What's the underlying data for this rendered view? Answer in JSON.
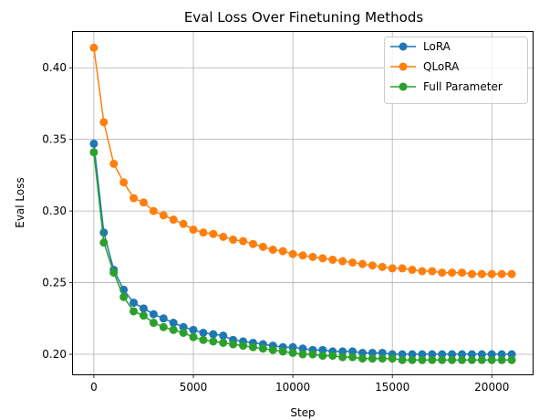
{
  "chart_data": {
    "type": "line",
    "title": "Eval Loss Over Finetuning Methods",
    "xlabel": "Step",
    "ylabel": "Eval Loss",
    "xlim": [
      -1050,
      22050
    ],
    "ylim": [
      0.186,
      0.425
    ],
    "x_ticks": [
      0,
      5000,
      10000,
      15000,
      20000
    ],
    "x_tick_labels": [
      "0",
      "5000",
      "10000",
      "15000",
      "20000"
    ],
    "y_ticks": [
      0.2,
      0.25,
      0.3,
      0.35,
      0.4
    ],
    "y_tick_labels": [
      "0.20",
      "0.25",
      "0.30",
      "0.35",
      "0.40"
    ],
    "grid": true,
    "legend_position": "top-right",
    "x": [
      0,
      500,
      1000,
      1500,
      2000,
      2500,
      3000,
      3500,
      4000,
      4500,
      5000,
      5500,
      6000,
      6500,
      7000,
      7500,
      8000,
      8500,
      9000,
      9500,
      10000,
      10500,
      11000,
      11500,
      12000,
      12500,
      13000,
      13500,
      14000,
      14500,
      15000,
      15500,
      16000,
      16500,
      17000,
      17500,
      18000,
      18500,
      19000,
      19500,
      20000,
      20500,
      21000
    ],
    "series": [
      {
        "name": "LoRA",
        "color": "#1f77b4",
        "values": [
          0.347,
          0.285,
          0.259,
          0.245,
          0.236,
          0.232,
          0.228,
          0.225,
          0.222,
          0.219,
          0.217,
          0.215,
          0.214,
          0.213,
          0.21,
          0.209,
          0.208,
          0.207,
          0.206,
          0.205,
          0.205,
          0.204,
          0.203,
          0.203,
          0.202,
          0.202,
          0.202,
          0.201,
          0.201,
          0.201,
          0.2,
          0.2,
          0.2,
          0.2,
          0.2,
          0.2,
          0.2,
          0.2,
          0.2,
          0.2,
          0.2,
          0.2,
          0.2
        ]
      },
      {
        "name": "QLoRA",
        "color": "#ff7f0e",
        "values": [
          0.414,
          0.362,
          0.333,
          0.32,
          0.309,
          0.306,
          0.3,
          0.297,
          0.294,
          0.291,
          0.287,
          0.285,
          0.284,
          0.282,
          0.28,
          0.279,
          0.277,
          0.275,
          0.273,
          0.272,
          0.27,
          0.269,
          0.268,
          0.267,
          0.266,
          0.265,
          0.264,
          0.263,
          0.262,
          0.261,
          0.26,
          0.26,
          0.259,
          0.258,
          0.258,
          0.257,
          0.257,
          0.257,
          0.256,
          0.256,
          0.256,
          0.256,
          0.256
        ]
      },
      {
        "name": "Full Parameter",
        "color": "#2ca02c",
        "values": [
          0.341,
          0.278,
          0.257,
          0.24,
          0.23,
          0.227,
          0.222,
          0.219,
          0.217,
          0.215,
          0.212,
          0.21,
          0.209,
          0.208,
          0.207,
          0.206,
          0.205,
          0.204,
          0.203,
          0.202,
          0.201,
          0.2,
          0.2,
          0.199,
          0.199,
          0.198,
          0.198,
          0.197,
          0.197,
          0.197,
          0.197,
          0.196,
          0.196,
          0.196,
          0.196,
          0.196,
          0.196,
          0.196,
          0.196,
          0.196,
          0.196,
          0.196,
          0.196
        ]
      }
    ]
  }
}
